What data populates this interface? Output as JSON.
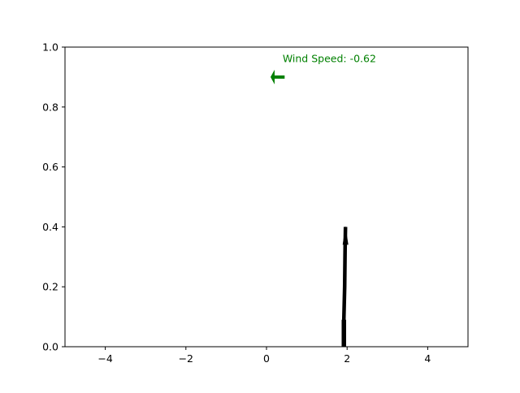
{
  "chart_data": {
    "type": "line",
    "title": "",
    "xlabel": "",
    "ylabel": "",
    "xlim": [
      -5,
      5
    ],
    "ylim": [
      0,
      1
    ],
    "x_ticks": [
      -4,
      -2,
      0,
      2,
      4
    ],
    "x_tick_labels": [
      "−4",
      "−2",
      "0",
      "2",
      "4"
    ],
    "y_ticks": [
      0.0,
      0.2,
      0.4,
      0.6,
      0.8,
      1.0
    ],
    "y_tick_labels": [
      "0.0",
      "0.2",
      "0.4",
      "0.6",
      "0.8",
      "1.0"
    ],
    "grid": false,
    "legend": "none",
    "pole": {
      "color": "#000000",
      "base": [
        1.92,
        0.0
      ],
      "points": [
        [
          1.92,
          0.0
        ],
        [
          1.92,
          0.09
        ],
        [
          1.94,
          0.2
        ],
        [
          1.95,
          0.32
        ],
        [
          1.96,
          0.4
        ]
      ],
      "tip_arrow": true
    },
    "wind": {
      "label": "Wind Speed: -0.62",
      "value": -0.62,
      "arrow_tail": [
        0.45,
        0.9
      ],
      "arrow_head": [
        0.1,
        0.9
      ],
      "color": "#008000"
    }
  }
}
